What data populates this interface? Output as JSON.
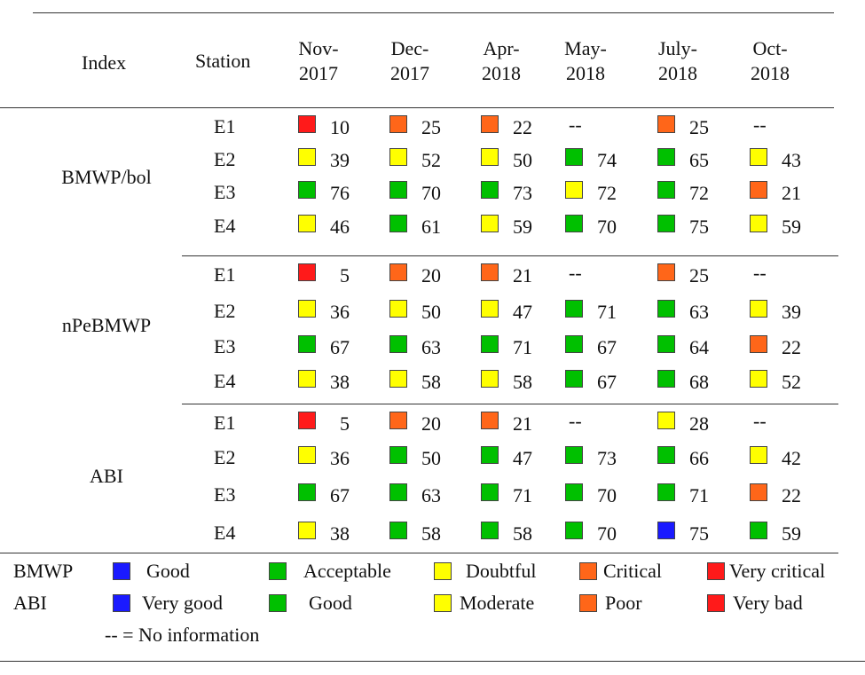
{
  "colors": {
    "blue": "#1a1aff",
    "green": "#00c000",
    "yellow": "#ffff00",
    "orange": "#ff6619",
    "red": "#ff1a1a"
  },
  "header": {
    "index": "Index",
    "station": "Station",
    "months": [
      [
        "Nov-",
        "2017"
      ],
      [
        "Dec-",
        "2017"
      ],
      [
        "Apr-",
        "2018"
      ],
      [
        "May-",
        "2018"
      ],
      [
        "July-",
        "2018"
      ],
      [
        "Oct-",
        "2018"
      ]
    ]
  },
  "blocks": [
    {
      "index": "BMWP/bol",
      "rows": [
        {
          "station": "E1",
          "cells": [
            [
              "red",
              "10"
            ],
            [
              "orange",
              "25"
            ],
            [
              "orange",
              "22"
            ],
            [
              null,
              "--"
            ],
            [
              "orange",
              "25"
            ],
            [
              null,
              "--"
            ]
          ]
        },
        {
          "station": "E2",
          "cells": [
            [
              "yellow",
              "39"
            ],
            [
              "yellow",
              "52"
            ],
            [
              "yellow",
              "50"
            ],
            [
              "green",
              "74"
            ],
            [
              "green",
              "65"
            ],
            [
              "yellow",
              "43"
            ]
          ]
        },
        {
          "station": "E3",
          "cells": [
            [
              "green",
              "76"
            ],
            [
              "green",
              "70"
            ],
            [
              "green",
              "73"
            ],
            [
              "yellow",
              "72"
            ],
            [
              "green",
              "72"
            ],
            [
              "orange",
              "21"
            ]
          ]
        },
        {
          "station": "E4",
          "cells": [
            [
              "yellow",
              "46"
            ],
            [
              "green",
              "61"
            ],
            [
              "yellow",
              "59"
            ],
            [
              "green",
              "70"
            ],
            [
              "green",
              "75"
            ],
            [
              "yellow",
              "59"
            ]
          ]
        }
      ]
    },
    {
      "index": "nPeBMWP",
      "rows": [
        {
          "station": "E1",
          "cells": [
            [
              "red",
              "5"
            ],
            [
              "orange",
              "20"
            ],
            [
              "orange",
              "21"
            ],
            [
              null,
              "--"
            ],
            [
              "orange",
              "25"
            ],
            [
              null,
              "--"
            ]
          ]
        },
        {
          "station": "E2",
          "cells": [
            [
              "yellow",
              "36"
            ],
            [
              "yellow",
              "50"
            ],
            [
              "yellow",
              "47"
            ],
            [
              "green",
              "71"
            ],
            [
              "green",
              "63"
            ],
            [
              "yellow",
              "39"
            ]
          ]
        },
        {
          "station": "E3",
          "cells": [
            [
              "green",
              "67"
            ],
            [
              "green",
              "63"
            ],
            [
              "green",
              "71"
            ],
            [
              "green",
              "67"
            ],
            [
              "green",
              "64"
            ],
            [
              "orange",
              "22"
            ]
          ]
        },
        {
          "station": "E4",
          "cells": [
            [
              "yellow",
              "38"
            ],
            [
              "yellow",
              "58"
            ],
            [
              "yellow",
              "58"
            ],
            [
              "green",
              "67"
            ],
            [
              "green",
              "68"
            ],
            [
              "yellow",
              "52"
            ]
          ]
        }
      ]
    },
    {
      "index": "ABI",
      "rows": [
        {
          "station": "E1",
          "cells": [
            [
              "red",
              "5"
            ],
            [
              "orange",
              "20"
            ],
            [
              "orange",
              "21"
            ],
            [
              null,
              "--"
            ],
            [
              "yellow",
              "28"
            ],
            [
              null,
              "--"
            ]
          ]
        },
        {
          "station": "E2",
          "cells": [
            [
              "yellow",
              "36"
            ],
            [
              "green",
              "50"
            ],
            [
              "green",
              "47"
            ],
            [
              "green",
              "73"
            ],
            [
              "green",
              "66"
            ],
            [
              "yellow",
              "42"
            ]
          ]
        },
        {
          "station": "E3",
          "cells": [
            [
              "green",
              "67"
            ],
            [
              "green",
              "63"
            ],
            [
              "green",
              "71"
            ],
            [
              "green",
              "70"
            ],
            [
              "green",
              "71"
            ],
            [
              "orange",
              "22"
            ]
          ]
        },
        {
          "station": "E4",
          "cells": [
            [
              "yellow",
              "38"
            ],
            [
              "green",
              "58"
            ],
            [
              "green",
              "58"
            ],
            [
              "green",
              "70"
            ],
            [
              "blue",
              "75"
            ],
            [
              "green",
              "59"
            ]
          ]
        }
      ]
    }
  ],
  "legend": {
    "rows": [
      {
        "label": "BMWP",
        "items": [
          [
            "blue",
            "Good"
          ],
          [
            "green",
            "Acceptable"
          ],
          [
            "yellow",
            "Doubtful"
          ],
          [
            "orange",
            "Critical"
          ],
          [
            "red",
            "Very critical"
          ]
        ]
      },
      {
        "label": "ABI",
        "items": [
          [
            "blue",
            "Very good"
          ],
          [
            "green",
            "Good"
          ],
          [
            "yellow",
            "Moderate"
          ],
          [
            "orange",
            "Poor"
          ],
          [
            "red",
            "Very bad"
          ]
        ]
      }
    ],
    "no_info": "-- = No information"
  }
}
